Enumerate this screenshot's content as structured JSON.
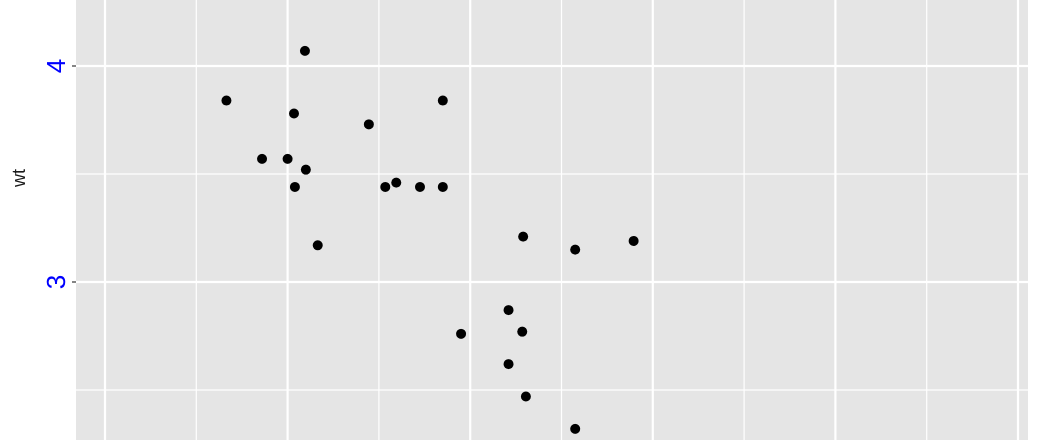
{
  "chart_data": {
    "type": "scatter",
    "xlabel": "",
    "ylabel": "wt",
    "y_ticks": [
      {
        "label": "4",
        "value": 4
      },
      {
        "label": "3",
        "value": 3
      }
    ],
    "y_minor": [
      3.5,
      2.5
    ],
    "ylim": [
      2.3,
      4.3
    ],
    "xlim": [
      0,
      10
    ],
    "grid": true,
    "colors": {
      "panel": "#e5e5e5",
      "grid": "#ffffff",
      "points": "#000000",
      "y_tick_labels": "#0000ff"
    },
    "points": [
      {
        "x": 1.33,
        "y": 3.84
      },
      {
        "x": 2.19,
        "y": 4.07
      },
      {
        "x": 3.7,
        "y": 3.84
      },
      {
        "x": 2.07,
        "y": 3.78
      },
      {
        "x": 2.89,
        "y": 3.73
      },
      {
        "x": 1.72,
        "y": 3.57
      },
      {
        "x": 2.0,
        "y": 3.57
      },
      {
        "x": 2.2,
        "y": 3.52
      },
      {
        "x": 3.19,
        "y": 3.46
      },
      {
        "x": 3.07,
        "y": 3.44
      },
      {
        "x": 3.45,
        "y": 3.44
      },
      {
        "x": 3.7,
        "y": 3.44
      },
      {
        "x": 2.08,
        "y": 3.44
      },
      {
        "x": 2.33,
        "y": 3.17
      },
      {
        "x": 4.58,
        "y": 3.21
      },
      {
        "x": 5.15,
        "y": 3.15
      },
      {
        "x": 5.79,
        "y": 3.19
      },
      {
        "x": 4.42,
        "y": 2.87
      },
      {
        "x": 4.57,
        "y": 2.77
      },
      {
        "x": 3.9,
        "y": 2.76
      },
      {
        "x": 4.42,
        "y": 2.62
      },
      {
        "x": 4.61,
        "y": 2.47
      },
      {
        "x": 5.15,
        "y": 2.32
      }
    ]
  }
}
